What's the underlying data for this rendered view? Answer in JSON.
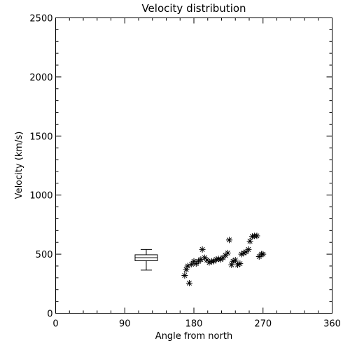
{
  "chart_data": {
    "type": "scatter",
    "title": "Velocity distribution",
    "xlabel": "Angle from north",
    "ylabel": "Velocity (km/s)",
    "xlim": [
      0,
      360
    ],
    "ylim": [
      0,
      2500
    ],
    "xticks": [
      0,
      90,
      180,
      270,
      360
    ],
    "yticks": [
      0,
      500,
      1000,
      1500,
      2000,
      2500
    ],
    "grid": false,
    "marker": "asterisk",
    "points": [
      {
        "x": 168,
        "y": 320
      },
      {
        "x": 170,
        "y": 370
      },
      {
        "x": 172,
        "y": 400
      },
      {
        "x": 174,
        "y": 255
      },
      {
        "x": 177,
        "y": 415
      },
      {
        "x": 180,
        "y": 440
      },
      {
        "x": 183,
        "y": 420
      },
      {
        "x": 186,
        "y": 440
      },
      {
        "x": 189,
        "y": 455
      },
      {
        "x": 191,
        "y": 540
      },
      {
        "x": 194,
        "y": 470
      },
      {
        "x": 197,
        "y": 450
      },
      {
        "x": 200,
        "y": 430
      },
      {
        "x": 203,
        "y": 440
      },
      {
        "x": 206,
        "y": 440
      },
      {
        "x": 209,
        "y": 455
      },
      {
        "x": 212,
        "y": 460
      },
      {
        "x": 215,
        "y": 455
      },
      {
        "x": 218,
        "y": 470
      },
      {
        "x": 221,
        "y": 490
      },
      {
        "x": 224,
        "y": 510
      },
      {
        "x": 226,
        "y": 620
      },
      {
        "x": 229,
        "y": 410
      },
      {
        "x": 231,
        "y": 440
      },
      {
        "x": 234,
        "y": 450
      },
      {
        "x": 237,
        "y": 410
      },
      {
        "x": 240,
        "y": 420
      },
      {
        "x": 242,
        "y": 500
      },
      {
        "x": 245,
        "y": 510
      },
      {
        "x": 248,
        "y": 520
      },
      {
        "x": 251,
        "y": 540
      },
      {
        "x": 253,
        "y": 610
      },
      {
        "x": 256,
        "y": 650
      },
      {
        "x": 259,
        "y": 655
      },
      {
        "x": 262,
        "y": 655
      },
      {
        "x": 265,
        "y": 480
      },
      {
        "x": 268,
        "y": 500
      },
      {
        "x": 270,
        "y": 500
      }
    ],
    "boxplot": {
      "x": 118,
      "min": 365,
      "q1": 445,
      "median": 470,
      "q3": 495,
      "max": 540
    }
  }
}
